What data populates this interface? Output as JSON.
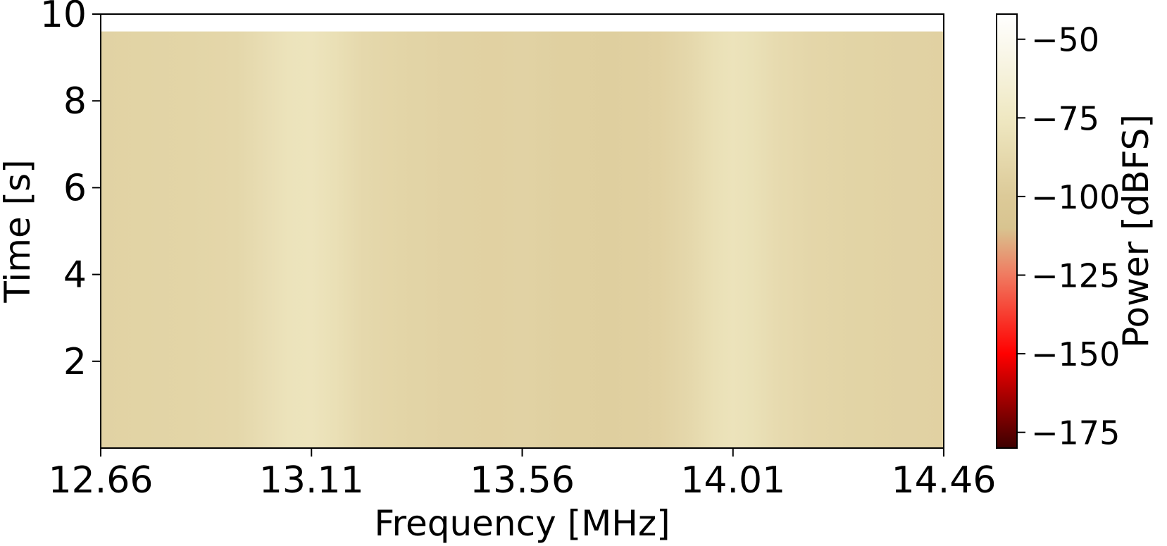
{
  "chart_data": {
    "type": "heatmap",
    "title": "",
    "xlabel": "Frequency [MHz]",
    "ylabel": "Time [s]",
    "xlim": [
      12.66,
      14.46
    ],
    "ylim": [
      0,
      10
    ],
    "data_time_max": 9.6,
    "x_ticks": [
      12.66,
      13.11,
      13.56,
      14.01,
      14.46
    ],
    "x_tick_labels": [
      "12.66",
      "13.11",
      "13.56",
      "14.01",
      "14.46"
    ],
    "y_ticks": [
      2,
      4,
      6,
      8,
      10
    ],
    "y_tick_labels": [
      "2",
      "4",
      "6",
      "8",
      "10"
    ],
    "colorbar": {
      "label": "Power [dBFS]",
      "range": [
        -180,
        -42
      ],
      "ticks": [
        -50,
        -75,
        -100,
        -125,
        -150,
        -175
      ],
      "tick_labels": [
        "−50",
        "−75",
        "−100",
        "−125",
        "−150",
        "−175"
      ],
      "colormap_stops": [
        {
          "value": -180,
          "color": "#3d0000"
        },
        {
          "value": -150,
          "color": "#ff0000"
        },
        {
          "value": -125,
          "color": "#f07a60"
        },
        {
          "value": -110,
          "color": "#d8c490"
        },
        {
          "value": -100,
          "color": "#dcca98"
        },
        {
          "value": -75,
          "color": "#efe8c2"
        },
        {
          "value": -42,
          "color": "#ffffff"
        }
      ]
    },
    "power_profile": {
      "frequency_mhz": [
        12.66,
        12.75,
        12.85,
        12.95,
        13.02,
        13.06,
        13.11,
        13.16,
        13.22,
        13.3,
        13.4,
        13.5,
        13.56,
        13.65,
        13.75,
        13.85,
        13.92,
        13.97,
        14.01,
        14.05,
        14.1,
        14.18,
        14.28,
        14.38,
        14.46
      ],
      "power_dbfs": [
        -93,
        -92,
        -91,
        -89,
        -83,
        -79,
        -78,
        -82,
        -88,
        -91,
        -93,
        -94,
        -93,
        -95,
        -96,
        -94,
        -88,
        -82,
        -79,
        -81,
        -86,
        -90,
        -92,
        -93,
        -94
      ]
    }
  }
}
